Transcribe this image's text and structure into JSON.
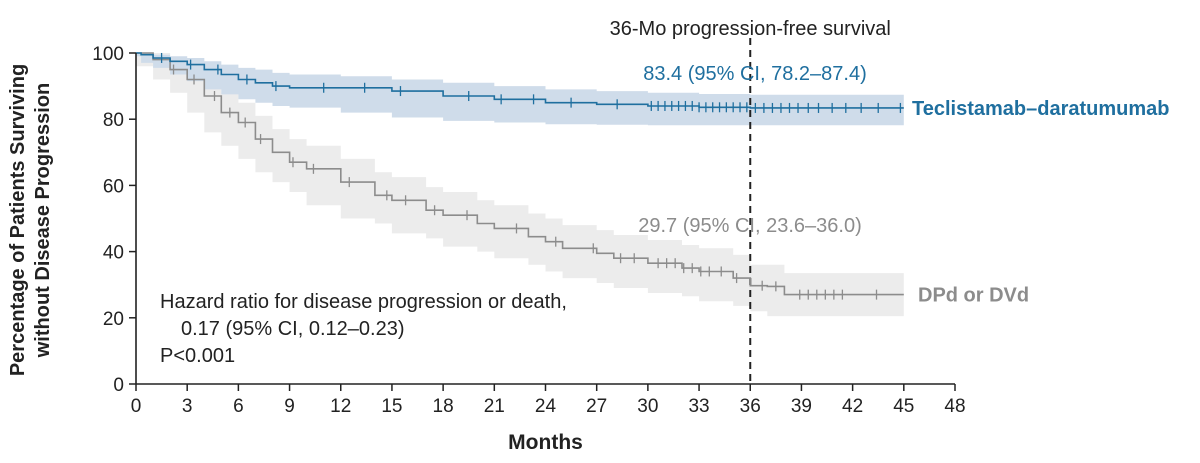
{
  "chart_data": {
    "type": "line",
    "subtype": "kaplan-meier",
    "xlabel": "Months",
    "ylabel_line1": "Percentage of Patients Surviving",
    "ylabel_line2": "without Disease Progression",
    "xlim": [
      0,
      48
    ],
    "ylim": [
      0,
      100
    ],
    "xticks": [
      "0",
      "3",
      "6",
      "9",
      "12",
      "15",
      "18",
      "21",
      "24",
      "27",
      "30",
      "33",
      "36",
      "39",
      "42",
      "45",
      "48"
    ],
    "yticks": [
      "0",
      "20",
      "40",
      "60",
      "80",
      "100"
    ],
    "reference_line": {
      "x": 36,
      "label": "36-Mo progression-free survival"
    },
    "series": [
      {
        "name": "Teclistamab–daratumumab",
        "color": "#1f6f9f",
        "ci_color": "#cfdcea",
        "estimate_label": "83.4 (95% CI, 78.2–87.4)",
        "x": [
          0,
          0.3,
          1,
          2,
          3,
          4,
          5,
          6,
          7,
          8,
          9,
          12,
          15,
          18,
          21,
          24,
          27,
          30,
          33,
          36,
          39,
          42,
          45
        ],
        "y": [
          100,
          99.5,
          98.5,
          97.5,
          96.5,
          95,
          93.5,
          92,
          91,
          90,
          89.5,
          89.5,
          88.5,
          87,
          86,
          85,
          84.5,
          84,
          83.6,
          83.4,
          83.4,
          83.4,
          83.4
        ],
        "ci_lower": [
          100,
          99,
          97,
          95.5,
          93.5,
          91.5,
          89,
          87.5,
          86,
          85,
          84,
          83.5,
          82,
          80.5,
          79.5,
          79,
          78.5,
          78.3,
          78.2,
          78.2,
          78.2,
          78.2,
          78.2
        ],
        "ci_upper": [
          100,
          100,
          99.5,
          99,
          98.5,
          97.5,
          96.5,
          95.5,
          95,
          94,
          93.5,
          93,
          92,
          91,
          90,
          89,
          88.5,
          88,
          87.6,
          87.4,
          87.4,
          87.4,
          87.4
        ],
        "censor_x": [
          1.5,
          3.2,
          4.8,
          6.5,
          8.2,
          11,
          13.4,
          15.5,
          19.5,
          21.4,
          23.3,
          25.5,
          28.2,
          30.2,
          30.6,
          31,
          31.4,
          31.8,
          32.2,
          32.6,
          33,
          33.4,
          33.8,
          34.2,
          34.6,
          35,
          35.4,
          35.8,
          36.3,
          36.8,
          37.3,
          37.8,
          38.3,
          38.8,
          39.4,
          40,
          40.8,
          41.6,
          42.5,
          43.5,
          44.8
        ]
      },
      {
        "name": "DPd or DVd",
        "color": "#8c8c8c",
        "ci_color": "#ececec",
        "estimate_label": "29.7 (95% CI, 23.6–36.0)",
        "x": [
          0,
          1,
          2,
          3,
          4,
          5,
          6,
          7,
          8,
          9,
          10,
          12,
          14,
          15,
          17,
          18,
          20,
          21,
          23,
          24,
          25,
          27,
          28,
          30,
          32,
          33,
          35,
          36,
          37,
          38,
          39,
          42,
          45
        ],
        "y": [
          100,
          98,
          95,
          92,
          87,
          82,
          79,
          74,
          70,
          67,
          65,
          61,
          57,
          55.5,
          52.5,
          51,
          48.5,
          47,
          44.5,
          43,
          41,
          39.5,
          38,
          36.5,
          35,
          34,
          32,
          29.7,
          29.5,
          27,
          27,
          27,
          27
        ],
        "ci_lower": [
          100,
          96,
          92,
          88,
          82,
          76,
          72,
          68,
          64,
          61,
          58,
          54,
          50,
          48.5,
          45.5,
          44,
          41.5,
          40,
          38,
          36,
          34,
          32,
          30.5,
          29,
          27.5,
          26.5,
          25,
          23.6,
          22,
          20.5,
          20.5,
          20.5,
          20.5
        ],
        "ci_upper": [
          100,
          100,
          98.5,
          96,
          92,
          88,
          85,
          81,
          77,
          74,
          72,
          68,
          64,
          62.5,
          59.5,
          58,
          55.5,
          54,
          51.5,
          50,
          48,
          46.5,
          45,
          43.5,
          42,
          41,
          39,
          36.0,
          36,
          33.5,
          33.5,
          33.5,
          33.5
        ],
        "censor_x": [
          2.2,
          3.4,
          4.6,
          5.5,
          6.4,
          7.3,
          9.2,
          10.4,
          12.5,
          14.7,
          15.8,
          17.5,
          19.4,
          22.3,
          24.6,
          26.8,
          28.4,
          29.2,
          30.6,
          31.1,
          31.6,
          32.1,
          32.6,
          33.1,
          33.6,
          34.3,
          35.2,
          36.7,
          37.5,
          38.9,
          39.4,
          39.9,
          40.4,
          40.9,
          41.4,
          43.4
        ]
      }
    ],
    "annotations": {
      "hr_line1": "Hazard ratio for disease progression or death,",
      "hr_line2": "0.17 (95% CI, 0.12–0.23)",
      "p_value": "P<0.001"
    }
  }
}
